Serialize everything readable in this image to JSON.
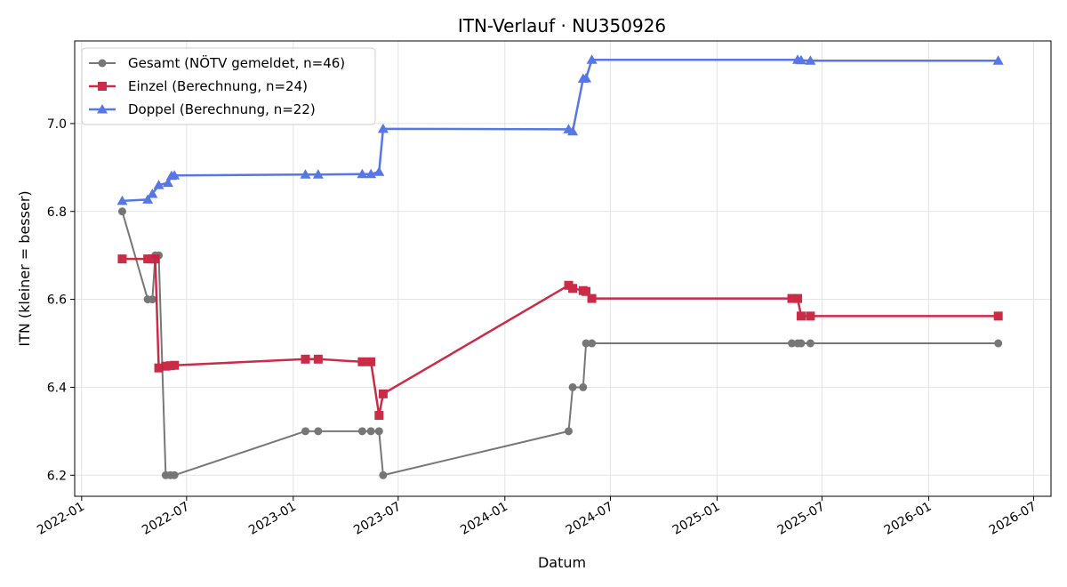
{
  "chart_data": {
    "type": "line",
    "title": "ITN-Verlauf · NU350926",
    "xlabel": "Datum",
    "ylabel": "ITN  (kleiner = besser)",
    "x_type": "date",
    "xlim": [
      "2021-12-20",
      "2026-07-31"
    ],
    "ylim": [
      6.152,
      7.188
    ],
    "y_ticks": [
      6.2,
      6.4,
      6.6,
      6.8,
      7.0
    ],
    "x_ticks": [
      "2022-01-01",
      "2022-07-01",
      "2023-01-01",
      "2023-07-01",
      "2024-01-01",
      "2024-07-01",
      "2025-01-01",
      "2025-07-01",
      "2026-01-01",
      "2026-07-01"
    ],
    "x_tick_labels": [
      "2022-01",
      "2022-07",
      "2023-01",
      "2023-07",
      "2024-01",
      "2024-07",
      "2025-01",
      "2025-07",
      "2026-01",
      "2026-07"
    ],
    "grid": true,
    "legend_position": "top-left",
    "series": [
      {
        "name": "Gesamt (NÖTV gemeldet, n=46)",
        "color": "#444444",
        "marker": "circle",
        "points": [
          [
            "2022-03-12",
            6.8
          ],
          [
            "2022-04-25",
            6.6
          ],
          [
            "2022-05-03",
            6.6
          ],
          [
            "2022-05-08",
            6.7
          ],
          [
            "2022-05-14",
            6.7
          ],
          [
            "2022-05-26",
            6.2
          ],
          [
            "2022-06-03",
            6.2
          ],
          [
            "2022-06-10",
            6.2
          ],
          [
            "2023-01-22",
            6.3
          ],
          [
            "2023-02-13",
            6.3
          ],
          [
            "2023-04-30",
            6.3
          ],
          [
            "2023-05-15",
            6.3
          ],
          [
            "2023-05-29",
            6.3
          ],
          [
            "2023-06-05",
            6.2
          ],
          [
            "2024-04-20",
            6.3
          ],
          [
            "2024-04-27",
            6.4
          ],
          [
            "2024-05-15",
            6.4
          ],
          [
            "2024-05-20",
            6.5
          ],
          [
            "2024-05-30",
            6.5
          ],
          [
            "2025-05-10",
            6.5
          ],
          [
            "2025-05-20",
            6.5
          ],
          [
            "2025-05-26",
            6.5
          ],
          [
            "2025-06-11",
            6.5
          ],
          [
            "2026-05-01",
            6.5
          ]
        ]
      },
      {
        "name": "Einzel (Berechnung, n=24)",
        "color": "#c8213e",
        "marker": "square",
        "points": [
          [
            "2022-03-12",
            6.692
          ],
          [
            "2022-04-25",
            6.692
          ],
          [
            "2022-05-03",
            6.692
          ],
          [
            "2022-05-08",
            6.692
          ],
          [
            "2022-05-14",
            6.444
          ],
          [
            "2022-05-26",
            6.448
          ],
          [
            "2022-06-03",
            6.449
          ],
          [
            "2022-06-10",
            6.45
          ],
          [
            "2023-01-22",
            6.464
          ],
          [
            "2023-02-13",
            6.464
          ],
          [
            "2023-04-30",
            6.458
          ],
          [
            "2023-05-15",
            6.458
          ],
          [
            "2023-05-29",
            6.336
          ],
          [
            "2023-06-05",
            6.385
          ],
          [
            "2024-04-20",
            6.632
          ],
          [
            "2024-04-27",
            6.625
          ],
          [
            "2024-05-15",
            6.62
          ],
          [
            "2024-05-20",
            6.618
          ],
          [
            "2024-05-30",
            6.602
          ],
          [
            "2025-05-10",
            6.602
          ],
          [
            "2025-05-20",
            6.602
          ],
          [
            "2025-05-26",
            6.562
          ],
          [
            "2025-06-11",
            6.562
          ],
          [
            "2026-05-01",
            6.562
          ]
        ]
      },
      {
        "name": "Doppel (Berechnung, n=22)",
        "color": "#4f6fe6",
        "marker": "triangle",
        "points": [
          [
            "2022-03-12",
            6.824
          ],
          [
            "2022-04-25",
            6.827
          ],
          [
            "2022-05-03",
            6.84
          ],
          [
            "2022-05-14",
            6.86
          ],
          [
            "2022-05-30",
            6.865
          ],
          [
            "2022-06-05",
            6.881
          ],
          [
            "2022-06-10",
            6.882
          ],
          [
            "2023-01-22",
            6.884
          ],
          [
            "2023-02-13",
            6.884
          ],
          [
            "2023-04-30",
            6.885
          ],
          [
            "2023-05-15",
            6.885
          ],
          [
            "2023-05-29",
            6.89
          ],
          [
            "2023-06-05",
            6.988
          ],
          [
            "2024-04-20",
            6.987
          ],
          [
            "2024-04-27",
            6.982
          ],
          [
            "2024-05-15",
            7.102
          ],
          [
            "2024-05-20",
            7.103
          ],
          [
            "2024-05-30",
            7.145
          ],
          [
            "2025-05-20",
            7.145
          ],
          [
            "2025-05-26",
            7.144
          ],
          [
            "2025-06-11",
            7.143
          ],
          [
            "2026-05-01",
            7.143
          ]
        ]
      }
    ]
  }
}
